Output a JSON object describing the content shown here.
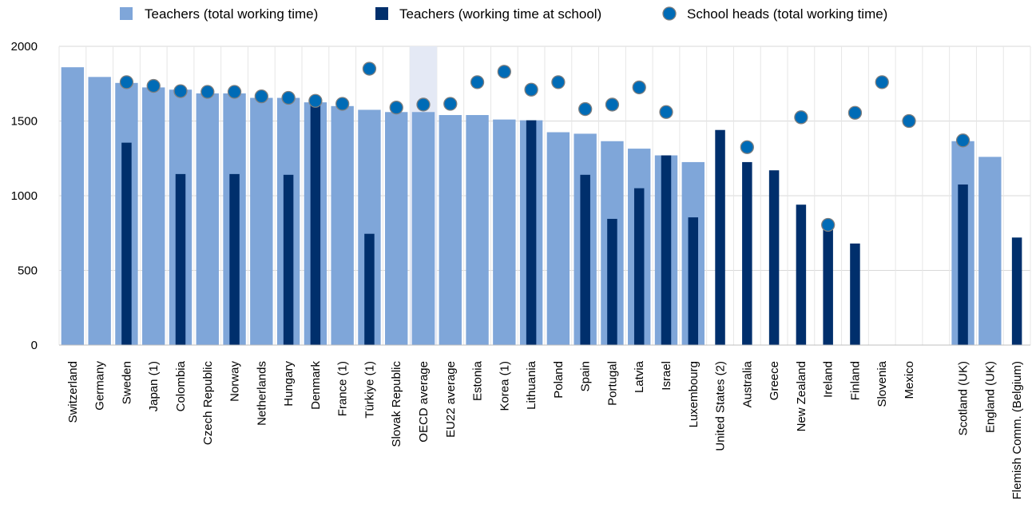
{
  "chart_data": {
    "type": "bar",
    "ylim": [
      0,
      2000
    ],
    "yticks": [
      0,
      500,
      1000,
      1500,
      2000
    ],
    "grid": true,
    "legend_position": "top",
    "highlight_category": "OECD average",
    "categories": [
      "Switzerland",
      "Germany",
      "Sweden",
      "Japan (1)",
      "Colombia",
      "Czech Republic",
      "Norway",
      "Netherlands",
      "Hungary",
      "Denmark",
      "France (1)",
      "Türkiye (1)",
      "Slovak Republic",
      "OECD average",
      "EU22 average",
      "Estonia",
      "Korea (1)",
      "Lithuania",
      "Poland",
      "Spain",
      "Portugal",
      "Latvia",
      "Israel",
      "Luxembourg",
      "United States (2)",
      "Australia",
      "Greece",
      "New Zealand",
      "Ireland",
      "Finland",
      "Slovenia",
      "Mexico",
      "",
      "Scotland (UK)",
      "England (UK)",
      "Flemish Comm. (Belgium)"
    ],
    "series": [
      {
        "name": "Teachers (total working time)",
        "kind": "bar",
        "color": "#7fa6d9",
        "values": [
          1860,
          1795,
          1755,
          1725,
          1710,
          1685,
          1685,
          1655,
          1655,
          1625,
          1600,
          1575,
          1560,
          1560,
          1540,
          1540,
          1510,
          1505,
          1425,
          1415,
          1365,
          1315,
          1270,
          1225,
          null,
          null,
          null,
          null,
          null,
          null,
          null,
          null,
          null,
          1365,
          1260,
          null
        ]
      },
      {
        "name": "Teachers (working time at school)",
        "kind": "bar",
        "color": "#002f6c",
        "values": [
          null,
          null,
          1355,
          null,
          1145,
          null,
          1145,
          null,
          1140,
          1625,
          null,
          745,
          null,
          null,
          null,
          null,
          null,
          1505,
          null,
          1140,
          845,
          1050,
          1270,
          855,
          1440,
          1225,
          1170,
          940,
          790,
          680,
          null,
          null,
          null,
          1075,
          null,
          720
        ]
      },
      {
        "name": "School heads (total working time)",
        "kind": "marker",
        "color": "#006bb6",
        "values": [
          null,
          null,
          1760,
          1735,
          1700,
          1695,
          1695,
          1665,
          1655,
          1635,
          1615,
          1850,
          1590,
          1610,
          1615,
          1760,
          1830,
          1710,
          1760,
          1580,
          1610,
          1725,
          1560,
          null,
          null,
          1325,
          null,
          1525,
          805,
          1555,
          1760,
          1500,
          null,
          1370,
          null,
          null
        ]
      }
    ]
  }
}
